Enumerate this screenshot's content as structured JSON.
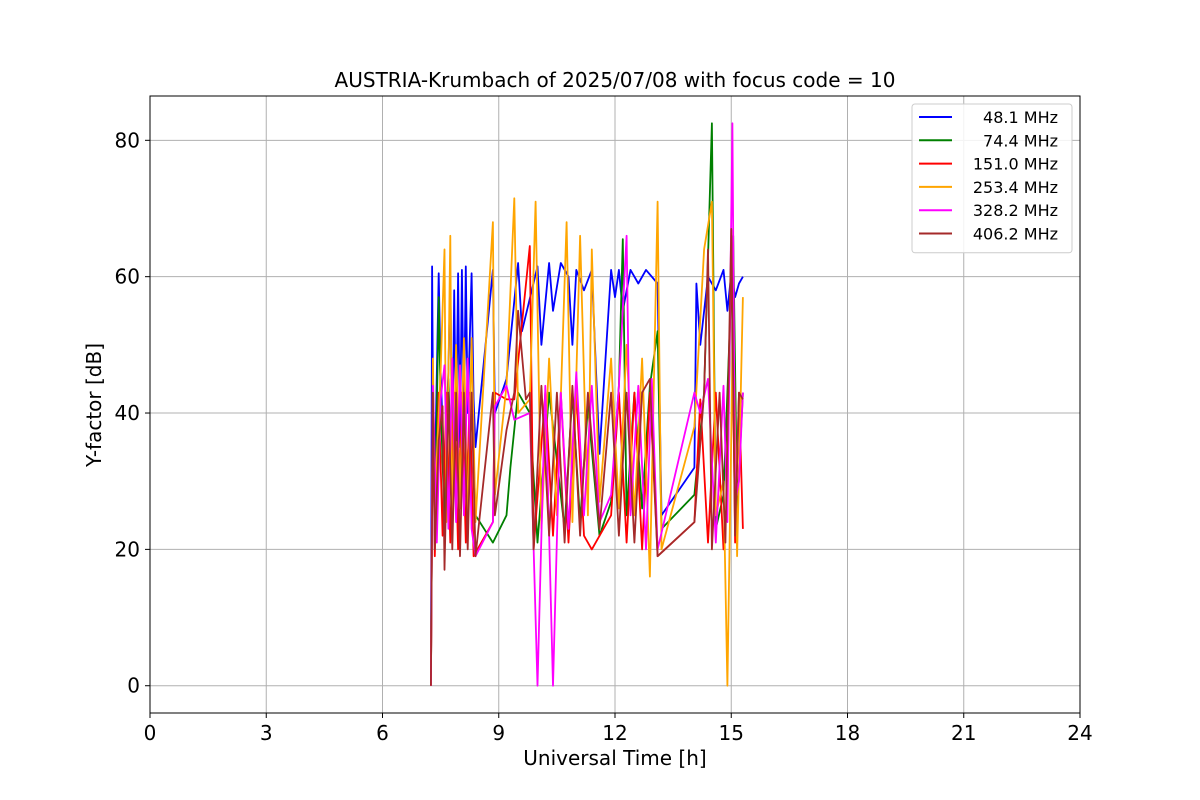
{
  "chart_data": {
    "type": "line",
    "title": "AUSTRIA-Krumbach of 2025/07/08 with focus code = 10",
    "xlabel": "Universal Time [h]",
    "ylabel": "Y-factor [dB]",
    "xlim": [
      0,
      24
    ],
    "ylim": [
      -4,
      86.5
    ],
    "xticks": [
      0,
      3,
      6,
      9,
      12,
      15,
      18,
      21,
      24
    ],
    "yticks": [
      0,
      20,
      40,
      60,
      80
    ],
    "grid": true,
    "legend_position": "top-right",
    "series": [
      {
        "name": "48.1 MHz",
        "color": "#0000ff",
        "points": [
          [
            7.25,
            0
          ],
          [
            7.28,
            61.5
          ],
          [
            7.3,
            44
          ],
          [
            7.35,
            30
          ],
          [
            7.45,
            60.5
          ],
          [
            7.5,
            46
          ],
          [
            7.6,
            31
          ],
          [
            7.7,
            46
          ],
          [
            7.75,
            60
          ],
          [
            7.8,
            33
          ],
          [
            7.85,
            58
          ],
          [
            7.9,
            36
          ],
          [
            7.95,
            60.5
          ],
          [
            8.0,
            35
          ],
          [
            8.05,
            61
          ],
          [
            8.1,
            38
          ],
          [
            8.15,
            61.5
          ],
          [
            8.2,
            40
          ],
          [
            8.3,
            60.5
          ],
          [
            8.35,
            42
          ],
          [
            8.4,
            35
          ],
          [
            8.85,
            61
          ],
          [
            8.9,
            40
          ],
          [
            9.2,
            45
          ],
          [
            9.5,
            62
          ],
          [
            9.6,
            52
          ],
          [
            10.0,
            61.5
          ],
          [
            10.1,
            50
          ],
          [
            10.3,
            62
          ],
          [
            10.4,
            55
          ],
          [
            10.6,
            62
          ],
          [
            10.8,
            60
          ],
          [
            10.9,
            50
          ],
          [
            11.0,
            61
          ],
          [
            11.2,
            58
          ],
          [
            11.4,
            61
          ],
          [
            11.6,
            34
          ],
          [
            11.9,
            61
          ],
          [
            12.0,
            57
          ],
          [
            12.1,
            61
          ],
          [
            12.2,
            55
          ],
          [
            12.4,
            61
          ],
          [
            12.6,
            59
          ],
          [
            12.8,
            61
          ],
          [
            13.1,
            59
          ],
          [
            13.2,
            25
          ],
          [
            14.05,
            32
          ],
          [
            14.1,
            59
          ],
          [
            14.2,
            50
          ],
          [
            14.4,
            60
          ],
          [
            14.6,
            58
          ],
          [
            14.8,
            61
          ],
          [
            14.9,
            55
          ],
          [
            15.0,
            60.5
          ],
          [
            15.1,
            57
          ],
          [
            15.2,
            59
          ],
          [
            15.3,
            60
          ]
        ]
      },
      {
        "name": "74.4 MHz",
        "color": "#008000",
        "points": [
          [
            7.25,
            0
          ],
          [
            7.3,
            43
          ],
          [
            7.35,
            22
          ],
          [
            7.45,
            57
          ],
          [
            7.5,
            42
          ],
          [
            7.6,
            24
          ],
          [
            7.7,
            45
          ],
          [
            7.8,
            26
          ],
          [
            7.9,
            44
          ],
          [
            8.0,
            27
          ],
          [
            8.1,
            43
          ],
          [
            8.2,
            29
          ],
          [
            8.3,
            43
          ],
          [
            8.4,
            25
          ],
          [
            8.85,
            21
          ],
          [
            9.2,
            25
          ],
          [
            9.3,
            32
          ],
          [
            9.5,
            43
          ],
          [
            9.8,
            40
          ],
          [
            10.0,
            21
          ],
          [
            10.3,
            43
          ],
          [
            10.5,
            33
          ],
          [
            10.7,
            23
          ],
          [
            10.9,
            43
          ],
          [
            11.1,
            24
          ],
          [
            11.3,
            41
          ],
          [
            11.6,
            22
          ],
          [
            11.9,
            27
          ],
          [
            12.1,
            44
          ],
          [
            12.2,
            65.5
          ],
          [
            12.3,
            25
          ],
          [
            12.5,
            43
          ],
          [
            12.7,
            26
          ],
          [
            12.9,
            44
          ],
          [
            13.1,
            52
          ],
          [
            13.2,
            23
          ],
          [
            14.05,
            28
          ],
          [
            14.3,
            43
          ],
          [
            14.5,
            82.5
          ],
          [
            14.6,
            23
          ],
          [
            14.8,
            28
          ],
          [
            14.9,
            43
          ],
          [
            15.05,
            66
          ],
          [
            15.15,
            26
          ],
          [
            15.3,
            43
          ]
        ]
      },
      {
        "name": "151.0 MHz",
        "color": "#ff0000",
        "points": [
          [
            7.25,
            0
          ],
          [
            7.3,
            43
          ],
          [
            7.35,
            19
          ],
          [
            7.45,
            43
          ],
          [
            7.55,
            22
          ],
          [
            7.65,
            43
          ],
          [
            7.75,
            21
          ],
          [
            7.85,
            43
          ],
          [
            7.95,
            20
          ],
          [
            8.05,
            43
          ],
          [
            8.15,
            21
          ],
          [
            8.25,
            43
          ],
          [
            8.35,
            19
          ],
          [
            8.85,
            24
          ],
          [
            8.9,
            43
          ],
          [
            9.2,
            42
          ],
          [
            9.4,
            42
          ],
          [
            9.8,
            64.5
          ],
          [
            9.9,
            20
          ],
          [
            10.2,
            43
          ],
          [
            10.4,
            22
          ],
          [
            10.6,
            43
          ],
          [
            10.8,
            21
          ],
          [
            11.0,
            43
          ],
          [
            11.2,
            22
          ],
          [
            11.4,
            20
          ],
          [
            11.9,
            25
          ],
          [
            12.1,
            43
          ],
          [
            12.3,
            21
          ],
          [
            12.5,
            43
          ],
          [
            12.7,
            20
          ],
          [
            12.9,
            43
          ],
          [
            13.1,
            19
          ],
          [
            14.05,
            24
          ],
          [
            14.2,
            42
          ],
          [
            14.4,
            21
          ],
          [
            14.6,
            43
          ],
          [
            14.8,
            20
          ],
          [
            14.9,
            28
          ],
          [
            15.0,
            66
          ],
          [
            15.1,
            21
          ],
          [
            15.2,
            43
          ],
          [
            15.3,
            23
          ]
        ]
      },
      {
        "name": "253.4 MHz",
        "color": "#ffa500",
        "points": [
          [
            7.25,
            0
          ],
          [
            7.3,
            48
          ],
          [
            7.35,
            27
          ],
          [
            7.5,
            46
          ],
          [
            7.6,
            64
          ],
          [
            7.65,
            24
          ],
          [
            7.75,
            66
          ],
          [
            7.8,
            22
          ],
          [
            7.9,
            50
          ],
          [
            8.0,
            26
          ],
          [
            8.1,
            51
          ],
          [
            8.2,
            23
          ],
          [
            8.3,
            51
          ],
          [
            8.4,
            24
          ],
          [
            8.85,
            68
          ],
          [
            8.9,
            28
          ],
          [
            9.2,
            44
          ],
          [
            9.4,
            71.5
          ],
          [
            9.5,
            40
          ],
          [
            9.8,
            42
          ],
          [
            9.95,
            71
          ],
          [
            10.1,
            23
          ],
          [
            10.3,
            48
          ],
          [
            10.5,
            25
          ],
          [
            10.75,
            68
          ],
          [
            10.9,
            24
          ],
          [
            11.1,
            66
          ],
          [
            11.3,
            25
          ],
          [
            11.4,
            64
          ],
          [
            11.6,
            27
          ],
          [
            11.9,
            48
          ],
          [
            12.1,
            26
          ],
          [
            12.3,
            50
          ],
          [
            12.5,
            25
          ],
          [
            12.7,
            48
          ],
          [
            12.9,
            16
          ],
          [
            13.1,
            71
          ],
          [
            13.2,
            20
          ],
          [
            14.05,
            38
          ],
          [
            14.3,
            64
          ],
          [
            14.5,
            71
          ],
          [
            14.6,
            25
          ],
          [
            14.8,
            30
          ],
          [
            14.9,
            0
          ],
          [
            15.05,
            55
          ],
          [
            15.15,
            19
          ],
          [
            15.3,
            57
          ]
        ]
      },
      {
        "name": "328.2 MHz",
        "color": "#ff00ff",
        "points": [
          [
            7.25,
            0
          ],
          [
            7.3,
            44
          ],
          [
            7.4,
            21
          ],
          [
            7.5,
            42
          ],
          [
            7.6,
            47
          ],
          [
            7.7,
            23
          ],
          [
            7.8,
            48
          ],
          [
            7.9,
            24
          ],
          [
            8.0,
            47
          ],
          [
            8.1,
            25
          ],
          [
            8.2,
            48
          ],
          [
            8.3,
            23
          ],
          [
            8.4,
            19
          ],
          [
            8.85,
            24
          ],
          [
            8.9,
            41
          ],
          [
            9.2,
            44
          ],
          [
            9.4,
            39
          ],
          [
            9.8,
            40
          ],
          [
            10.0,
            0
          ],
          [
            10.2,
            44
          ],
          [
            10.4,
            0
          ],
          [
            10.6,
            43
          ],
          [
            10.8,
            23
          ],
          [
            11.0,
            46
          ],
          [
            11.2,
            25
          ],
          [
            11.4,
            44
          ],
          [
            11.6,
            24
          ],
          [
            11.9,
            28
          ],
          [
            12.1,
            44
          ],
          [
            12.3,
            66
          ],
          [
            12.4,
            25
          ],
          [
            12.6,
            44
          ],
          [
            12.8,
            20
          ],
          [
            12.95,
            45
          ],
          [
            13.1,
            20
          ],
          [
            14.05,
            43
          ],
          [
            14.2,
            40
          ],
          [
            14.4,
            45
          ],
          [
            14.6,
            21
          ],
          [
            14.8,
            44
          ],
          [
            14.9,
            24
          ],
          [
            15.03,
            82.5
          ],
          [
            15.1,
            27
          ],
          [
            15.2,
            30
          ],
          [
            15.3,
            43
          ]
        ]
      },
      {
        "name": "406.2 MHz",
        "color": "#a52a2a",
        "points": [
          [
            7.25,
            0
          ],
          [
            7.3,
            43
          ],
          [
            7.35,
            20
          ],
          [
            7.45,
            36
          ],
          [
            7.55,
            41
          ],
          [
            7.6,
            17
          ],
          [
            7.7,
            43
          ],
          [
            7.8,
            20
          ],
          [
            7.9,
            43
          ],
          [
            8.0,
            19
          ],
          [
            8.1,
            43
          ],
          [
            8.2,
            20
          ],
          [
            8.3,
            43
          ],
          [
            8.4,
            19
          ],
          [
            8.85,
            43
          ],
          [
            8.9,
            25
          ],
          [
            9.2,
            37.5
          ],
          [
            9.4,
            43
          ],
          [
            9.5,
            55
          ],
          [
            9.7,
            42
          ],
          [
            9.8,
            43
          ],
          [
            9.9,
            20
          ],
          [
            10.1,
            44
          ],
          [
            10.3,
            22
          ],
          [
            10.5,
            43
          ],
          [
            10.7,
            21
          ],
          [
            10.9,
            44
          ],
          [
            11.1,
            22
          ],
          [
            11.3,
            43
          ],
          [
            11.6,
            23
          ],
          [
            11.9,
            43
          ],
          [
            12.1,
            22
          ],
          [
            12.3,
            43
          ],
          [
            12.5,
            21
          ],
          [
            12.7,
            43
          ],
          [
            12.9,
            45
          ],
          [
            13.1,
            19
          ],
          [
            14.05,
            24
          ],
          [
            14.3,
            43
          ],
          [
            14.4,
            64
          ],
          [
            14.5,
            20
          ],
          [
            14.7,
            43
          ],
          [
            14.85,
            21
          ],
          [
            15.0,
            67
          ],
          [
            15.1,
            22
          ],
          [
            15.2,
            43
          ],
          [
            15.3,
            42
          ]
        ]
      }
    ]
  }
}
